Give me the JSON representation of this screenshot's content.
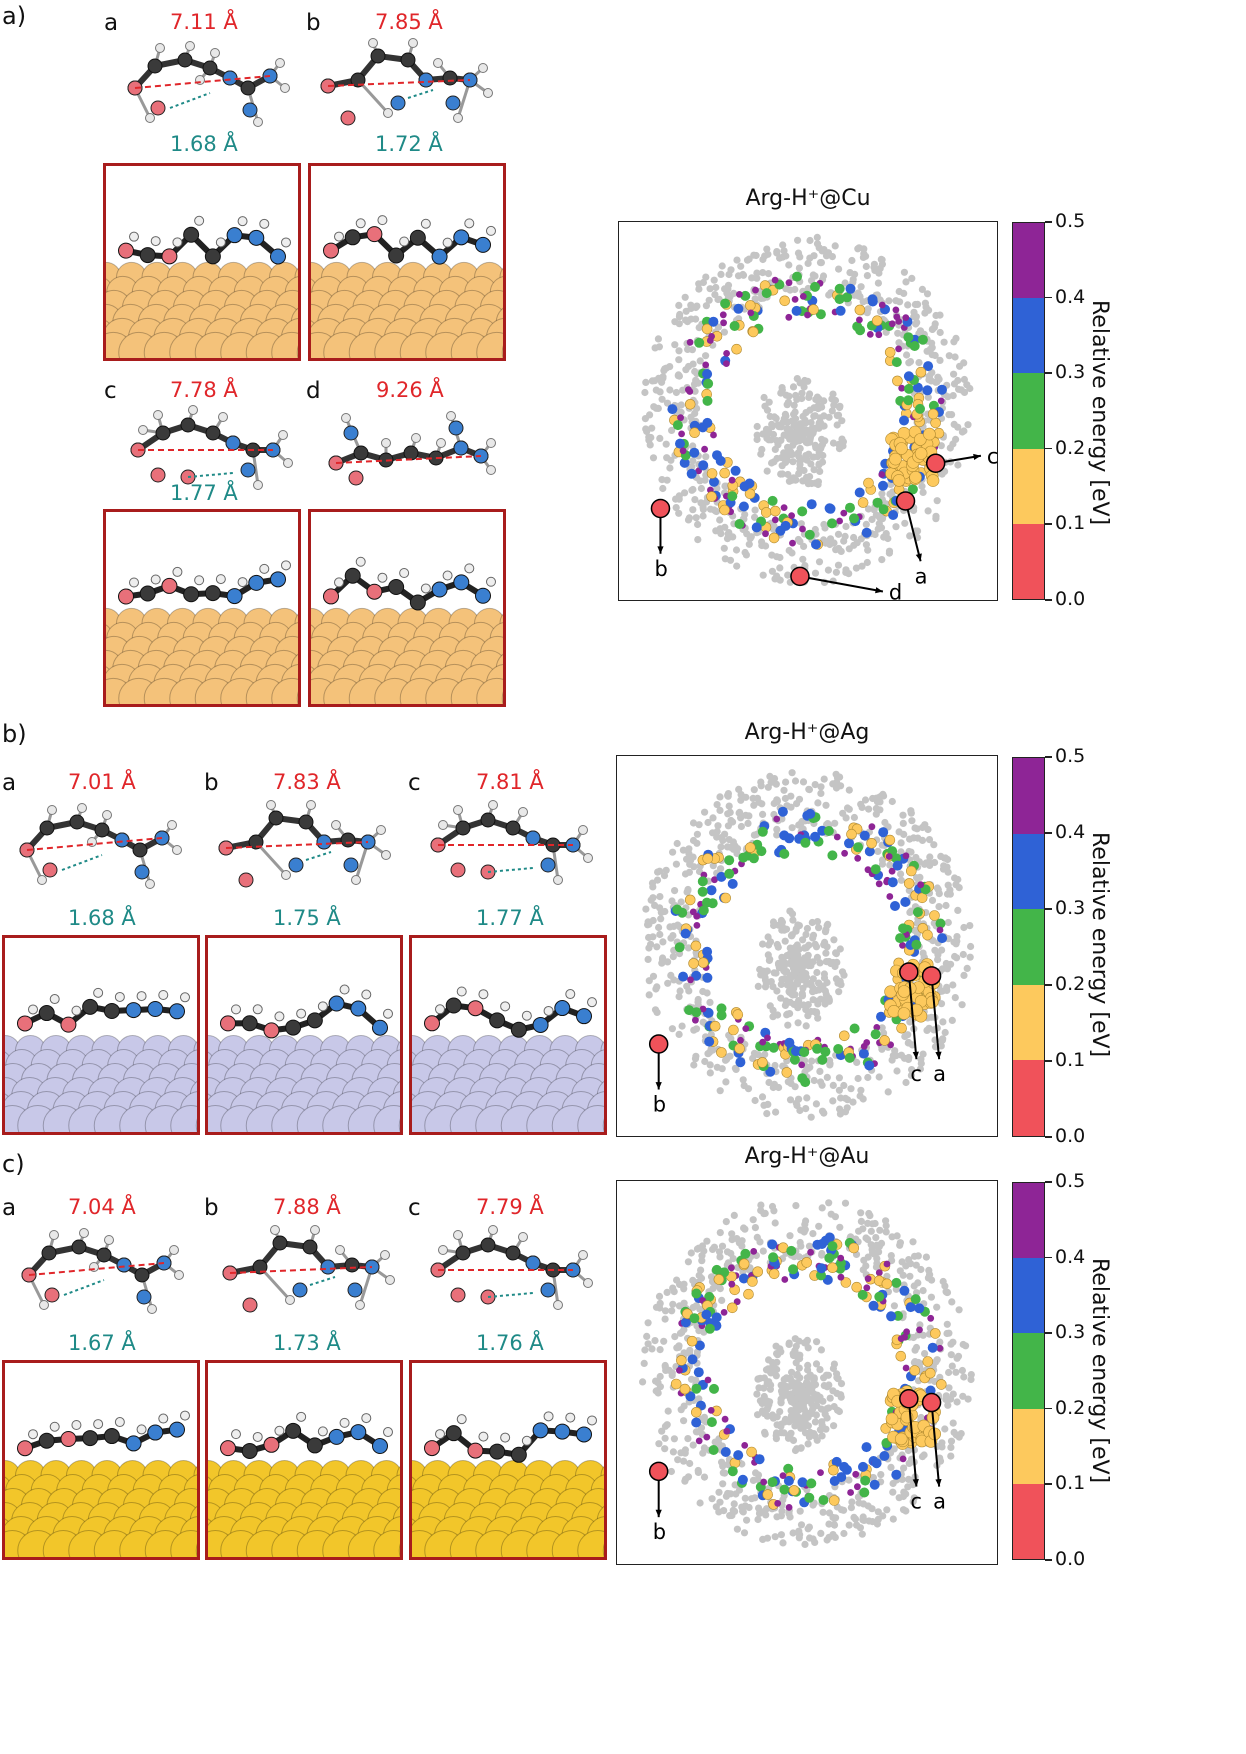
{
  "panels": [
    {
      "label": "a)",
      "map_title": "Arg-H⁺@Cu",
      "structures": [
        {
          "label": "a",
          "red_distance": "7.11 Å",
          "teal_distance": "1.68 Å"
        },
        {
          "label": "b",
          "red_distance": "7.85 Å",
          "teal_distance": "1.72 Å"
        },
        {
          "label": "c",
          "red_distance": "7.78 Å",
          "teal_distance": "1.77 Å"
        },
        {
          "label": "d",
          "red_distance": "9.26 Å",
          "teal_distance": ""
        }
      ],
      "surface_color": "#f4c27a",
      "map_markers": [
        "a",
        "b",
        "c",
        "d"
      ]
    },
    {
      "label": "b)",
      "map_title": "Arg-H⁺@Ag",
      "structures": [
        {
          "label": "a",
          "red_distance": "7.01 Å",
          "teal_distance": "1.68 Å"
        },
        {
          "label": "b",
          "red_distance": "7.83 Å",
          "teal_distance": "1.75 Å"
        },
        {
          "label": "c",
          "red_distance": "7.81 Å",
          "teal_distance": "1.77 Å"
        }
      ],
      "surface_color": "#c8c8e8",
      "map_markers": [
        "b",
        "c",
        "a"
      ]
    },
    {
      "label": "c)",
      "map_title": "Arg-H⁺@Au",
      "structures": [
        {
          "label": "a",
          "red_distance": "7.04 Å",
          "teal_distance": "1.67 Å"
        },
        {
          "label": "b",
          "red_distance": "7.88 Å",
          "teal_distance": "1.73 Å"
        },
        {
          "label": "c",
          "red_distance": "7.79 Å",
          "teal_distance": "1.76 Å"
        }
      ],
      "surface_color": "#f2c62a",
      "map_markers": [
        "b",
        "c",
        "a"
      ]
    }
  ],
  "colorbar": {
    "label": "Relative energy [eV]",
    "ticks": [
      "0.0",
      "0.1",
      "0.2",
      "0.3",
      "0.4",
      "0.5"
    ],
    "colors": [
      "#f0525a",
      "#fdc95d",
      "#43b549",
      "#2f62d6",
      "#8e2596"
    ]
  },
  "scatter_background_color": "#c4c4c4"
}
